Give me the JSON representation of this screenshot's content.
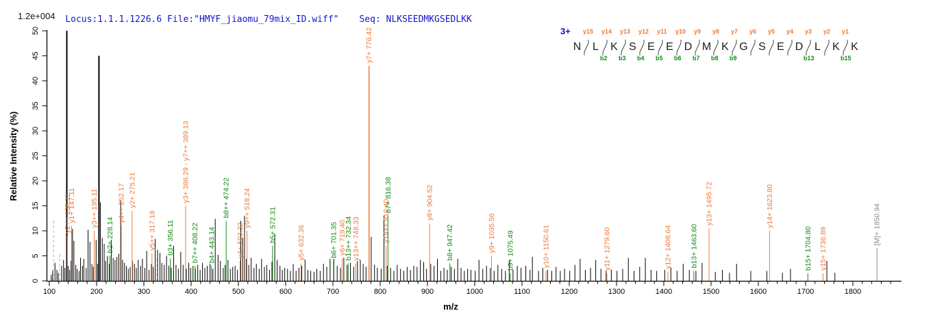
{
  "header": {
    "locus_file": "Locus:1.1.1.1226.6 File:\"HMYF_jiaomu_79mix_ID.wiff\"",
    "seq": "Seq: NLKSEEDMKGSEDLKK",
    "intensity_scale": "1.2e+004"
  },
  "sequence_panel": {
    "charge": "3+",
    "residues": [
      "N",
      "L",
      "K",
      "S",
      "E",
      "E",
      "D",
      "M",
      "K",
      "G",
      "S",
      "E",
      "D",
      "L",
      "K",
      "K"
    ],
    "gaps": [
      {
        "y": "y15",
        "b": ""
      },
      {
        "y": "y14",
        "b": "b2"
      },
      {
        "y": "y13",
        "b": "b3"
      },
      {
        "y": "y12",
        "b": "b4"
      },
      {
        "y": "y11",
        "b": "b5"
      },
      {
        "y": "y10",
        "b": "b6"
      },
      {
        "y": "y9",
        "b": "b7"
      },
      {
        "y": "y8",
        "b": "b8"
      },
      {
        "y": "y7",
        "b": "b9"
      },
      {
        "y": "y6",
        "b": ""
      },
      {
        "y": "y5",
        "b": ""
      },
      {
        "y": "y4",
        "b": ""
      },
      {
        "y": "y3",
        "b": "b13"
      },
      {
        "y": "y2",
        "b": ""
      },
      {
        "y": "y1",
        "b": "b15"
      }
    ]
  },
  "chart_data": {
    "type": "bar",
    "subtype": "centroid-ms2-spectrum",
    "xlabel": "m/z",
    "ylabel": "Relative Intensity (%)",
    "xlim": [
      100,
      1900
    ],
    "ylim": [
      0,
      50
    ],
    "x_ticks": [
      100,
      200,
      300,
      400,
      500,
      600,
      700,
      800,
      900,
      1000,
      1100,
      1200,
      1300,
      1400,
      1500,
      1600,
      1700,
      1800
    ],
    "x_minor_step": 20,
    "y_ticks": [
      0,
      5,
      10,
      15,
      20,
      25,
      30,
      35,
      40,
      45,
      50
    ],
    "colors": {
      "y_ion": "#f07838",
      "b_ion": "#118c11",
      "precursor": "#8c8c8c",
      "peak": "#000000",
      "header_blue": "#1414cc"
    },
    "labeled_peaks": [
      {
        "label": "y2++ 138.11",
        "mz": 138.11,
        "intensity": 9,
        "ion": "y"
      },
      {
        "label": "y1+ 147.11",
        "mz": 147.11,
        "intensity": 11,
        "ion": "y"
      },
      {
        "label": "y3++ 195.11",
        "mz": 195.11,
        "intensity": 10,
        "ion": "y"
      },
      {
        "label": "b2+ 228.14",
        "mz": 228.14,
        "intensity": 5,
        "ion": "b"
      },
      {
        "label": "y4++ 252.17",
        "mz": 252.17,
        "intensity": 11,
        "ion": "y"
      },
      {
        "label": "y2+ 275.21",
        "mz": 275.21,
        "intensity": 14,
        "ion": "y"
      },
      {
        "label": "y5++ 317.18",
        "mz": 317.18,
        "intensity": 5.5,
        "ion": "y"
      },
      {
        "label": "b3+ 356.11",
        "mz": 356.11,
        "intensity": 4.5,
        "ion": "b"
      },
      {
        "label": "y3+ 388.29 - y7++ 389.13",
        "mz": 388.29,
        "intensity": 15,
        "ion": "y"
      },
      {
        "label": "b7++ 408.22",
        "mz": 408.22,
        "intensity": 3,
        "ion": "b"
      },
      {
        "label": "b4+ 443.14",
        "mz": 443.14,
        "intensity": 3,
        "ion": "b"
      },
      {
        "label": "b8++ 474.22",
        "mz": 474.22,
        "intensity": 12,
        "ion": "b"
      },
      {
        "label": "y4+ 503.32",
        "mz": 503.32,
        "intensity": 4,
        "ion": "y"
      },
      {
        "label": "y9++ 518.24",
        "mz": 518.24,
        "intensity": 10,
        "ion": "y"
      },
      {
        "label": "b5+ 572.31",
        "mz": 572.31,
        "intensity": 7,
        "ion": "b"
      },
      {
        "label": "y5+ 632.36",
        "mz": 632.36,
        "intensity": 3.5,
        "ion": "y"
      },
      {
        "label": "b6+ 701.35",
        "mz": 701.35,
        "intensity": 4,
        "ion": "b"
      },
      {
        "label": "y6+ 719.40",
        "mz": 719.4,
        "intensity": 4.5,
        "ion": "y"
      },
      {
        "label": "b13++ 732.34",
        "mz": 732.34,
        "intensity": 3.5,
        "ion": "b"
      },
      {
        "label": "y13++ 748.33",
        "mz": 748.33,
        "intensity": 3.5,
        "ion": "y"
      },
      {
        "label": "y7+ 776.42",
        "mz": 776.42,
        "intensity": 43,
        "ion": "y"
      },
      {
        "label": "y14++ 812.40",
        "mz": 812.4,
        "intensity": 7,
        "ion": "y"
      },
      {
        "label": "b7+ 816.38",
        "mz": 816.38,
        "intensity": 13,
        "ion": "b"
      },
      {
        "label": "y8+ 904.52",
        "mz": 904.52,
        "intensity": 11.5,
        "ion": "y"
      },
      {
        "label": "b8+ 947.42",
        "mz": 947.42,
        "intensity": 3.5,
        "ion": "b"
      },
      {
        "label": "y9+ 1035.56",
        "mz": 1035.56,
        "intensity": 5,
        "ion": "y"
      },
      {
        "label": "b9+ 1075.49",
        "mz": 1075.49,
        "intensity": 1.5,
        "ion": "b"
      },
      {
        "label": "y10+ 1150.61",
        "mz": 1150.61,
        "intensity": 2,
        "ion": "y"
      },
      {
        "label": "y11+ 1279.60",
        "mz": 1279.6,
        "intensity": 1.5,
        "ion": "y"
      },
      {
        "label": "y12+ 1408.64",
        "mz": 1408.64,
        "intensity": 1.8,
        "ion": "y"
      },
      {
        "label": "b13+ 1463.60",
        "mz": 1463.6,
        "intensity": 2,
        "ion": "b"
      },
      {
        "label": "y13+ 1495.72",
        "mz": 1495.72,
        "intensity": 10.5,
        "ion": "y"
      },
      {
        "label": "y14+ 1623.80",
        "mz": 1623.8,
        "intensity": 10,
        "ion": "y"
      },
      {
        "label": "b15+ 1704.80",
        "mz": 1704.8,
        "intensity": 1.5,
        "ion": "b"
      },
      {
        "label": "y15+ 1736.89",
        "mz": 1736.89,
        "intensity": 1.5,
        "ion": "y"
      },
      {
        "label": "[M]+ 1850.94",
        "mz": 1850.94,
        "intensity": 6.5,
        "ion": "M"
      }
    ],
    "dashed_peaks": [
      [
        109,
        12.5
      ],
      [
        122,
        5.5
      ],
      [
        328,
        4.3
      ]
    ],
    "background_peaks": [
      [
        104,
        1.2
      ],
      [
        107,
        2
      ],
      [
        112,
        3.6
      ],
      [
        116,
        2.2
      ],
      [
        119,
        1.6
      ],
      [
        126,
        3
      ],
      [
        130,
        4.2
      ],
      [
        133,
        2.6
      ],
      [
        137,
        50
      ],
      [
        140,
        3
      ],
      [
        143,
        2.2
      ],
      [
        146,
        4
      ],
      [
        149,
        10.4
      ],
      [
        152,
        8
      ],
      [
        156,
        3.2
      ],
      [
        159,
        2.4
      ],
      [
        163,
        2
      ],
      [
        166,
        4.6
      ],
      [
        170,
        3
      ],
      [
        173,
        4.4
      ],
      [
        178,
        2.6
      ],
      [
        182,
        10.2
      ],
      [
        186,
        7.8
      ],
      [
        190,
        3.4
      ],
      [
        193,
        2.8
      ],
      [
        199,
        8.2
      ],
      [
        202,
        3.4
      ],
      [
        205,
        45
      ],
      [
        208,
        15.7
      ],
      [
        212,
        8.6
      ],
      [
        216,
        7.4
      ],
      [
        219,
        4
      ],
      [
        223,
        5
      ],
      [
        227,
        3.4
      ],
      [
        231,
        8.2
      ],
      [
        235,
        4.6
      ],
      [
        239,
        4.2
      ],
      [
        243,
        4.8
      ],
      [
        247,
        5.4
      ],
      [
        251,
        16
      ],
      [
        255,
        4.2
      ],
      [
        259,
        3.6
      ],
      [
        263,
        3
      ],
      [
        267,
        2.4
      ],
      [
        271,
        2.8
      ],
      [
        276,
        4
      ],
      [
        280,
        3.4
      ],
      [
        284,
        2.6
      ],
      [
        288,
        4.2
      ],
      [
        293,
        3
      ],
      [
        297,
        4.4
      ],
      [
        302,
        2.6
      ],
      [
        306,
        6
      ],
      [
        311,
        2.2
      ],
      [
        316,
        3.4
      ],
      [
        320,
        2.8
      ],
      [
        324,
        8.4
      ],
      [
        329,
        6.2
      ],
      [
        334,
        5.6
      ],
      [
        338,
        3.6
      ],
      [
        343,
        3.2
      ],
      [
        348,
        5
      ],
      [
        353,
        3
      ],
      [
        358,
        2.6
      ],
      [
        363,
        7
      ],
      [
        368,
        3.2
      ],
      [
        373,
        2.4
      ],
      [
        378,
        5.8
      ],
      [
        383,
        3.2
      ],
      [
        390,
        2.4
      ],
      [
        395,
        3.6
      ],
      [
        399,
        2.6
      ],
      [
        404,
        3
      ],
      [
        409,
        2.4
      ],
      [
        414,
        3.2
      ],
      [
        419,
        2.2
      ],
      [
        424,
        3.6
      ],
      [
        429,
        2.6
      ],
      [
        434,
        3
      ],
      [
        440,
        3.4
      ],
      [
        446,
        2.4
      ],
      [
        451,
        12.4
      ],
      [
        457,
        5.2
      ],
      [
        462,
        4
      ],
      [
        468,
        2.6
      ],
      [
        472,
        3.2
      ],
      [
        478,
        4.2
      ],
      [
        483,
        2.4
      ],
      [
        488,
        2.8
      ],
      [
        493,
        3
      ],
      [
        498,
        2.2
      ],
      [
        505,
        12
      ],
      [
        509,
        8.6
      ],
      [
        513,
        13
      ],
      [
        517,
        4.4
      ],
      [
        522,
        3.2
      ],
      [
        527,
        4.6
      ],
      [
        533,
        2.6
      ],
      [
        538,
        3.4
      ],
      [
        544,
        2.4
      ],
      [
        549,
        4.4
      ],
      [
        555,
        2.8
      ],
      [
        560,
        3.2
      ],
      [
        566,
        2.2
      ],
      [
        571,
        3.8
      ],
      [
        577,
        9.4
      ],
      [
        582,
        4.2
      ],
      [
        588,
        3
      ],
      [
        593,
        2.2
      ],
      [
        598,
        2.6
      ],
      [
        604,
        2.4
      ],
      [
        610,
        2
      ],
      [
        616,
        3.4
      ],
      [
        622,
        2
      ],
      [
        628,
        2.6
      ],
      [
        634,
        3
      ],
      [
        641,
        4.2
      ],
      [
        647,
        2.2
      ],
      [
        653,
        2
      ],
      [
        660,
        1.8
      ],
      [
        666,
        2.4
      ],
      [
        673,
        2
      ],
      [
        680,
        3.4
      ],
      [
        687,
        2.8
      ],
      [
        694,
        4.4
      ],
      [
        702,
        4.4
      ],
      [
        709,
        3
      ],
      [
        716,
        2.6
      ],
      [
        723,
        4.6
      ],
      [
        730,
        3.2
      ],
      [
        737,
        3.6
      ],
      [
        744,
        2.8
      ],
      [
        752,
        4
      ],
      [
        758,
        4.2
      ],
      [
        764,
        3.4
      ],
      [
        770,
        2.8
      ],
      [
        781,
        8.8
      ],
      [
        788,
        3.2
      ],
      [
        794,
        2.6
      ],
      [
        802,
        2.4
      ],
      [
        808,
        13
      ],
      [
        815,
        3
      ],
      [
        822,
        2.6
      ],
      [
        829,
        2
      ],
      [
        836,
        3.2
      ],
      [
        843,
        2.4
      ],
      [
        850,
        2
      ],
      [
        857,
        2.8
      ],
      [
        864,
        2.2
      ],
      [
        871,
        3
      ],
      [
        878,
        2.8
      ],
      [
        885,
        4.2
      ],
      [
        892,
        3.8
      ],
      [
        898,
        2.4
      ],
      [
        907,
        3.4
      ],
      [
        914,
        3
      ],
      [
        921,
        4.4
      ],
      [
        928,
        2
      ],
      [
        935,
        2.6
      ],
      [
        942,
        2.2
      ],
      [
        950,
        2.8
      ],
      [
        957,
        2.4
      ],
      [
        964,
        4.4
      ],
      [
        971,
        2.6
      ],
      [
        978,
        2
      ],
      [
        985,
        2.4
      ],
      [
        992,
        2.2
      ],
      [
        1001,
        2
      ],
      [
        1009,
        4.2
      ],
      [
        1017,
        2.4
      ],
      [
        1025,
        3
      ],
      [
        1033,
        2.6
      ],
      [
        1041,
        2
      ],
      [
        1049,
        3.2
      ],
      [
        1057,
        2.4
      ],
      [
        1065,
        2
      ],
      [
        1073,
        4
      ],
      [
        1081,
        2.2
      ],
      [
        1090,
        3
      ],
      [
        1098,
        2.6
      ],
      [
        1108,
        3
      ],
      [
        1117,
        2.2
      ],
      [
        1122,
        4.8
      ],
      [
        1135,
        2
      ],
      [
        1144,
        2.6
      ],
      [
        1154,
        2.2
      ],
      [
        1163,
        2
      ],
      [
        1172,
        2.8
      ],
      [
        1181,
        2
      ],
      [
        1190,
        2.4
      ],
      [
        1201,
        2
      ],
      [
        1212,
        3.2
      ],
      [
        1223,
        4.4
      ],
      [
        1234,
        2.2
      ],
      [
        1245,
        2.6
      ],
      [
        1256,
        4.2
      ],
      [
        1267,
        2.4
      ],
      [
        1278,
        2
      ],
      [
        1289,
        2.2
      ],
      [
        1301,
        2
      ],
      [
        1313,
        2.4
      ],
      [
        1325,
        4.6
      ],
      [
        1337,
        2
      ],
      [
        1349,
        2.8
      ],
      [
        1361,
        4.6
      ],
      [
        1373,
        2.2
      ],
      [
        1385,
        2
      ],
      [
        1402,
        2.2
      ],
      [
        1415,
        2.6
      ],
      [
        1428,
        2
      ],
      [
        1441,
        3.4
      ],
      [
        1454,
        2.2
      ],
      [
        1468,
        2
      ],
      [
        1481,
        3.6
      ],
      [
        1509,
        1.8
      ],
      [
        1524,
        2.2
      ],
      [
        1539,
        1.6
      ],
      [
        1554,
        3.4
      ],
      [
        1584,
        2
      ],
      [
        1618,
        2
      ],
      [
        1651,
        1.6
      ],
      [
        1668,
        2.4
      ],
      [
        1745,
        4
      ],
      [
        1762,
        1.6
      ]
    ]
  }
}
